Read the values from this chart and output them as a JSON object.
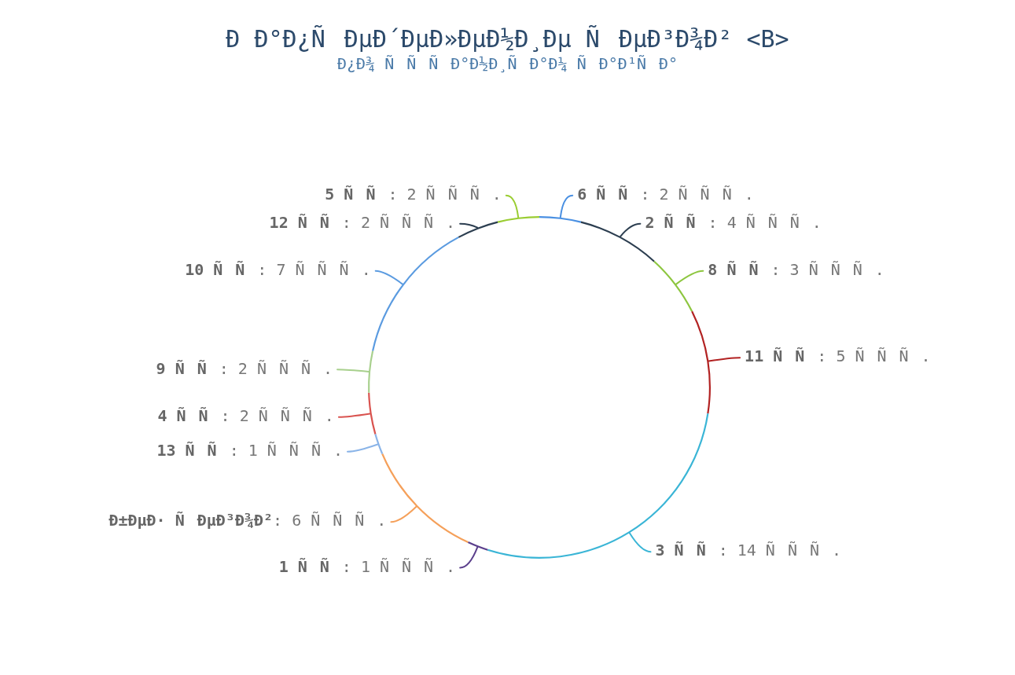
{
  "chart_data": {
    "type": "donut",
    "title": "Ð Ð°Ð¿ÑÐµÐ´ÐµÐ»ÐµÐ½Ð¸Ðµ ÑÐµÐ³Ð¾Ð² <B>",
    "subtitle": "Ð¿Ð¾ ÑÑÑÐ°Ð½Ð¸ÑÐ°Ð¼ ÑÐ°Ð¹ÑÐ°",
    "categories": [
      "6 ÑÑ",
      "2 ÑÑ",
      "8 ÑÑ",
      "11 ÑÑ",
      "3 ÑÑ",
      "1 ÑÑ",
      "Ð±ÐµÐ· ÑÐµÐ³Ð¾Ð²",
      "13 ÑÑ",
      "4 ÑÑ",
      "9 ÑÑ",
      "10 ÑÑ",
      "12 ÑÑ",
      "5 ÑÑ"
    ],
    "values": [
      2,
      4,
      3,
      5,
      14,
      1,
      6,
      1,
      2,
      2,
      7,
      2,
      2
    ],
    "value_labels": [
      ": 2 ÑÑÑ.",
      ": 4 ÑÑÑ.",
      ": 3 ÑÑÑ.",
      ": 5 ÑÑÑ.",
      ": 14 ÑÑÑ.",
      ": 1 ÑÑÑ.",
      ": 6 ÑÑÑ.",
      ": 1 ÑÑÑ.",
      ": 2 ÑÑÑ.",
      ": 2 ÑÑÑ.",
      ": 7 ÑÑÑ.",
      ": 2 ÑÑÑ.",
      ": 2 ÑÑÑ."
    ],
    "colors": [
      "#4a90e2",
      "#2c3e50",
      "#8dc63f",
      "#b22222",
      "#3ab5d6",
      "#5b3f8c",
      "#f5a05a",
      "#8ab4e8",
      "#d9534f",
      "#a8d08d",
      "#5b9be0",
      "#2c3e50",
      "#9acd32"
    ],
    "legend": false
  }
}
